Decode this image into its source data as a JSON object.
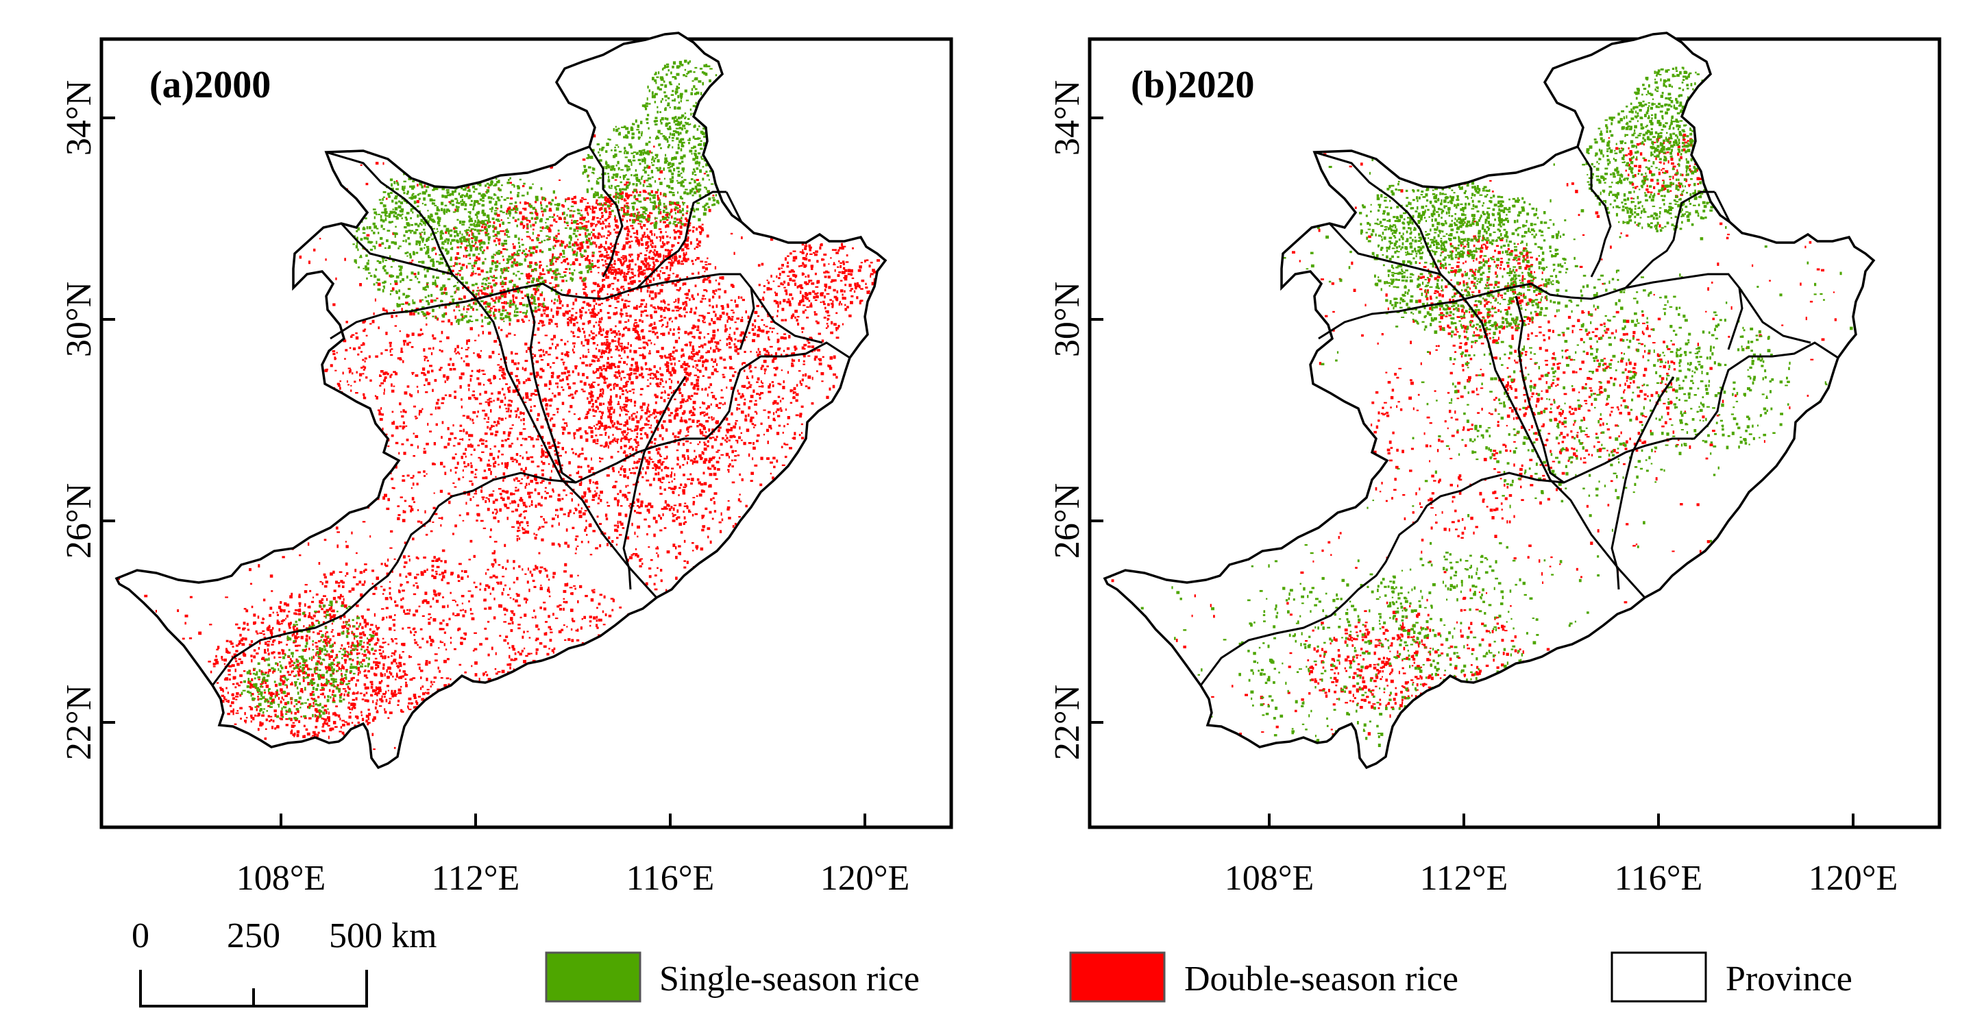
{
  "panels": [
    {
      "title": "(a)2000",
      "year": 2000,
      "single_color": "#4ea600",
      "double_color": "#ff0000",
      "lat_ticks": [
        34,
        30,
        26,
        22
      ],
      "lon_ticks": [
        108,
        112,
        116,
        120
      ],
      "lat_labels": [
        "34°N",
        "30°N",
        "26°N",
        "22°N"
      ],
      "lon_labels": [
        "108°E",
        "112°E",
        "116°E",
        "120°E"
      ],
      "single_density": "high",
      "double_density": "high"
    },
    {
      "title": "(b)2020",
      "year": 2020,
      "single_color": "#4ea600",
      "double_color": "#ff0000",
      "lat_ticks": [
        34,
        30,
        26,
        22
      ],
      "lon_ticks": [
        108,
        112,
        116,
        120
      ],
      "lat_labels": [
        "34°N",
        "30°N",
        "26°N",
        "22°N"
      ],
      "lon_labels": [
        "108°E",
        "112°E",
        "116°E",
        "120°E"
      ],
      "single_density": "medium",
      "double_density": "low"
    }
  ],
  "scale_bar": {
    "labels": [
      "0",
      "250",
      "500 km"
    ]
  },
  "legend": {
    "items": [
      {
        "label": "Single-season rice",
        "color": "#4ea600"
      },
      {
        "label": "Double-season rice",
        "color": "#ff0000"
      },
      {
        "label": "Province",
        "color": "#ffffff"
      }
    ]
  }
}
